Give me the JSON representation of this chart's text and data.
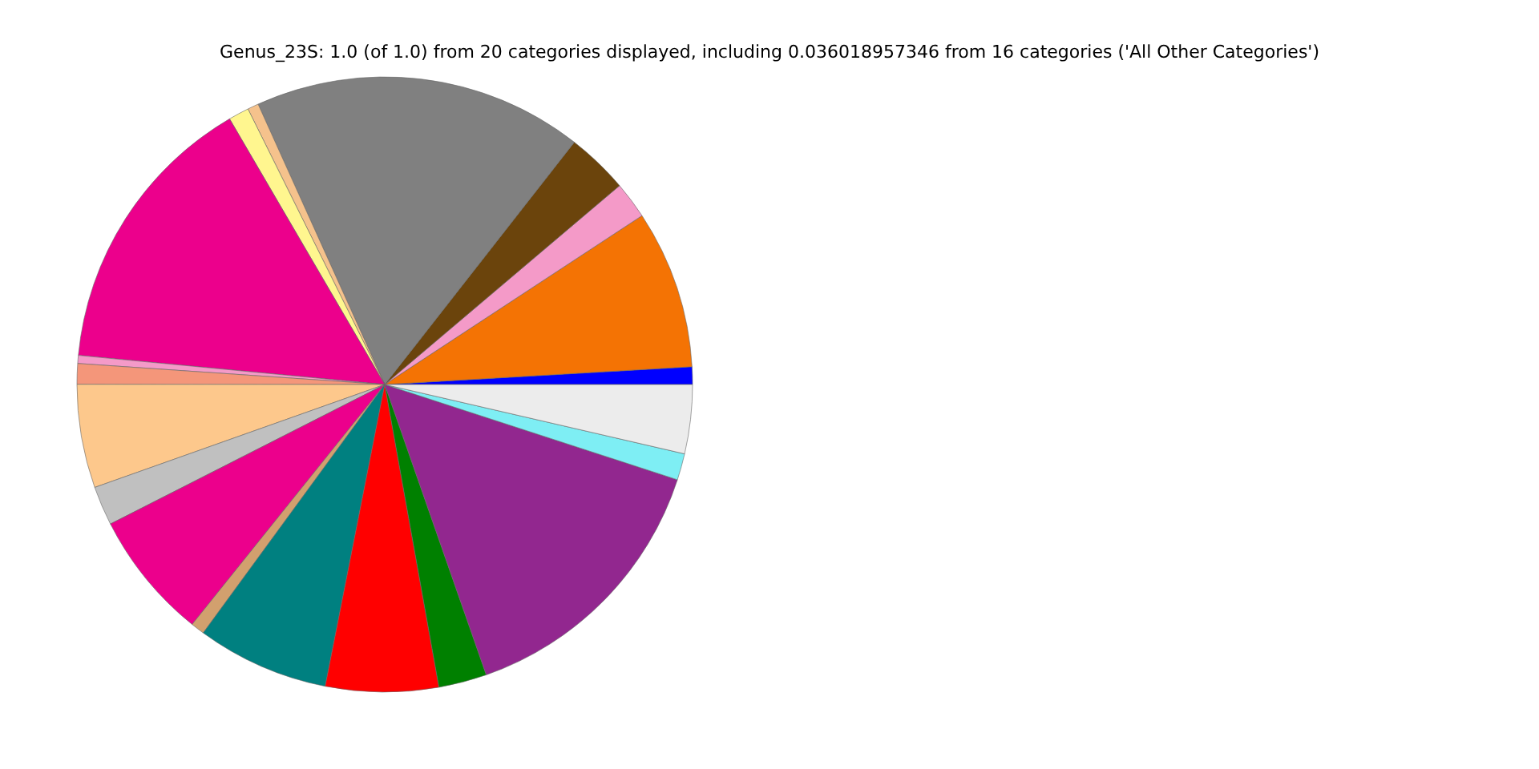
{
  "chart_data": {
    "type": "pie",
    "title": "Genus_23S: 1.0 (of 1.0) from 20 categories displayed, including 0.036018957346 from 16 categories ('All Other Categories')",
    "categories": [
      null,
      null,
      null,
      null,
      null,
      null,
      null,
      null,
      null,
      null,
      null,
      null,
      null,
      null,
      null,
      null,
      null,
      null,
      null,
      null
    ],
    "values": [
      0.92,
      8.33,
      1.94,
      3.25,
      17.31,
      0.58,
      1.08,
      15.08,
      0.42,
      1.08,
      5.44,
      2.06,
      6.75,
      0.72,
      6.94,
      5.92,
      2.53,
      14.64,
      1.39,
      3.62
    ],
    "colors": [
      "#0000ff",
      "#f47304",
      "#f49ac8",
      "#6b440c",
      "#808080",
      "#f5c28c",
      "#fff68f",
      "#ec008c",
      "#f49ac8",
      "#f4967a",
      "#fdc88c",
      "#c0c0c0",
      "#ec008c",
      "#d2a06e",
      "#008080",
      "#ff0000",
      "#008000",
      "#92278f",
      "#7eeef4",
      "#ececec"
    ]
  }
}
